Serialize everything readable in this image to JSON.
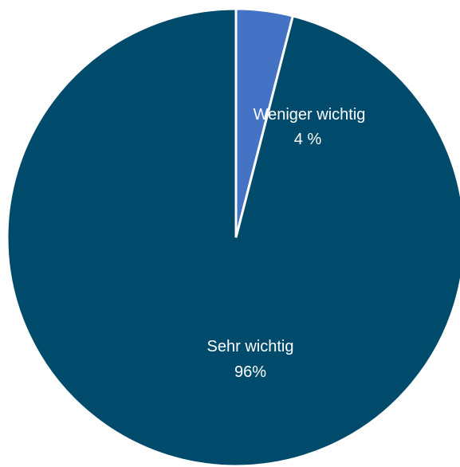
{
  "chart_data": {
    "type": "pie",
    "title": "",
    "slices": [
      {
        "name": "Weniger wichtig",
        "value": 4,
        "label": "4 %",
        "color": "#4472C4"
      },
      {
        "name": "Sehr wichtig",
        "value": 96,
        "label": "96%",
        "color": "#004A6B"
      }
    ],
    "legend": "none",
    "data_labels": "category-and-value-inside"
  }
}
